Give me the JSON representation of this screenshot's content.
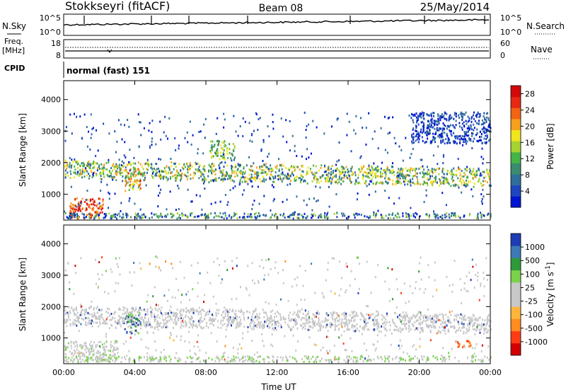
{
  "header": {
    "station": "Stokkseyri (fitACF)",
    "beam": "Beam 08",
    "date": "25/May/2014"
  },
  "noise_panel": {
    "left_label": "N.Sky",
    "right_label": "N.Search",
    "left_ticks": [
      "10^5",
      "10^0"
    ],
    "right_ticks": [
      "10^5",
      "10^0"
    ]
  },
  "freq_panel": {
    "left_label_line1": "Freq.",
    "left_label_line2": "[MHz]",
    "right_label": "Nave",
    "left_ticks": [
      "18",
      "8"
    ],
    "right_ticks": [
      "60",
      "0"
    ]
  },
  "cpid_panel": {
    "label": "CPID",
    "mode": "normal (fast) 151"
  },
  "colors": {
    "power": [
      "#0014d2",
      "#1e46be",
      "#2f6e9a",
      "#3a8c6e",
      "#46b446",
      "#a6d232",
      "#f0e61e",
      "#f5a01e",
      "#f06414",
      "#e62814",
      "#d20a0a"
    ],
    "velocity": [
      "#d20000",
      "#ff3c14",
      "#ff8c1e",
      "#ffb43c",
      "#c8c8c8",
      "#c8c8c8",
      "#7ad24a",
      "#2e9a3a",
      "#3c7ab4",
      "#1e3cb4"
    ]
  },
  "chart_data": [
    {
      "type": "heatmap",
      "name": "power",
      "ylabel": "Slant Range [km]",
      "yticks": [
        1000,
        2000,
        3000,
        4000
      ],
      "ylim": [
        180,
        4600
      ],
      "xlim": [
        0,
        24
      ],
      "colorbar": {
        "label": "Power [dB]",
        "ticks": [
          "4",
          "8",
          "12",
          "16",
          "20",
          "24",
          "28"
        ],
        "range": [
          0,
          30
        ]
      },
      "features": [
        {
          "desc": "main band",
          "range_km": [
            1500,
            2050
          ],
          "time_h": [
            0,
            24
          ],
          "power_db": [
            10,
            18
          ]
        },
        {
          "desc": "near range patch",
          "range_km": [
            200,
            900
          ],
          "time_h": [
            0.3,
            2.2
          ],
          "power_db": [
            24,
            30
          ]
        },
        {
          "desc": "loop feature",
          "range_km": [
            1100,
            1800
          ],
          "time_h": [
            3.4,
            4.3
          ],
          "power_db": [
            14,
            26
          ]
        },
        {
          "desc": "upper patch",
          "range_km": [
            2100,
            2700
          ],
          "time_h": [
            8.2,
            9.6
          ],
          "power_db": [
            14,
            22
          ]
        },
        {
          "desc": "far range scatter",
          "range_km": [
            2600,
            3600
          ],
          "time_h": [
            19.5,
            24
          ],
          "power_db": [
            2,
            8
          ]
        }
      ]
    },
    {
      "type": "heatmap",
      "name": "velocity",
      "ylabel": "Slant Range [km]",
      "yticks": [
        1000,
        2000,
        3000,
        4000
      ],
      "ylim": [
        180,
        4600
      ],
      "xlim": [
        0,
        24
      ],
      "xlabel": "Time UT",
      "xticks": [
        "00:00",
        "04:00",
        "08:00",
        "12:00",
        "16:00",
        "20:00",
        "00:00"
      ],
      "colorbar": {
        "label": "Velocity [m s^-1]",
        "ticks": [
          "-1000",
          "-500",
          "-100",
          "-25",
          "25",
          "100",
          "500",
          "1000"
        ],
        "range": [
          -1200,
          1200
        ]
      },
      "features": [
        {
          "desc": "ground scatter band",
          "range_km": [
            1400,
            2000
          ],
          "time_h": [
            0,
            24
          ],
          "velocity_ms": [
            -25,
            25
          ]
        },
        {
          "desc": "loop feature",
          "range_km": [
            1100,
            1800
          ],
          "time_h": [
            3.4,
            4.3
          ],
          "velocity_ms": [
            -200,
            800
          ]
        },
        {
          "desc": "near range",
          "range_km": [
            200,
            900
          ],
          "time_h": [
            0,
            3
          ],
          "velocity_ms": [
            -25,
            25
          ]
        },
        {
          "desc": "negative velocity patch",
          "range_km": [
            700,
            900
          ],
          "time_h": [
            22,
            23
          ],
          "velocity_ms": [
            -500,
            -300
          ]
        }
      ]
    }
  ]
}
